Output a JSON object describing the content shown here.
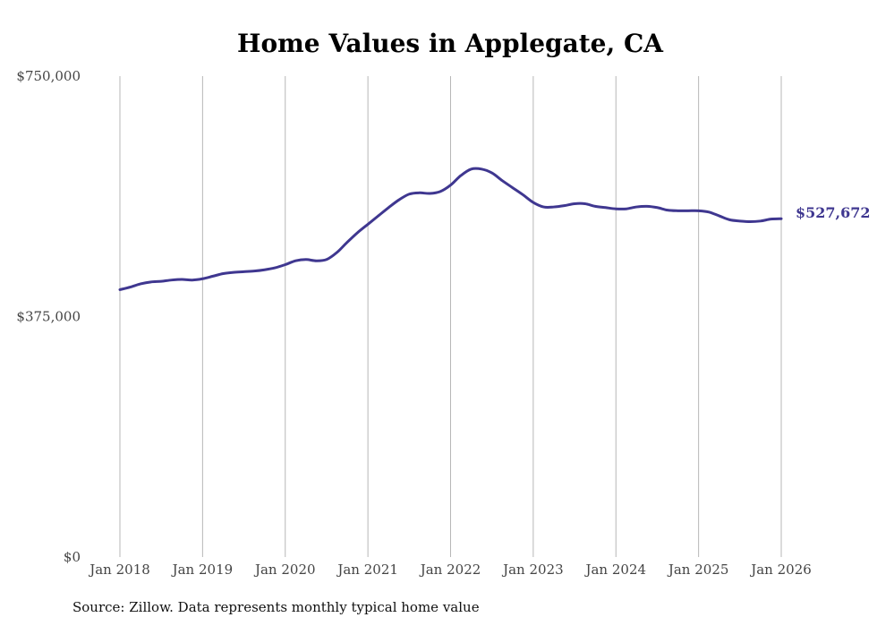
{
  "chart_data": {
    "type": "line",
    "title": "Home Values in Applegate, CA",
    "xlabel": "",
    "ylabel": "",
    "x_tick_labels": [
      "Jan 2018",
      "Jan 2019",
      "Jan 2020",
      "Jan 2021",
      "Jan 2022",
      "Jan 2023",
      "Jan 2024",
      "Jan 2025",
      "Jan 2026"
    ],
    "x_tick_values": [
      2018,
      2019,
      2020,
      2021,
      2022,
      2023,
      2024,
      2025,
      2026
    ],
    "xlim": [
      2018,
      2026
    ],
    "y_tick_labels": [
      "$0",
      "$375,000",
      "$750,000"
    ],
    "y_tick_values": [
      0,
      375000,
      750000
    ],
    "ylim": [
      0,
      750000
    ],
    "grid": "vertical",
    "series": [
      {
        "name": "Typical home value",
        "color": "#3f3790",
        "end_label": "$527,672",
        "x": [
          2018.0,
          2018.125,
          2018.25,
          2018.375,
          2018.5,
          2018.625,
          2018.75,
          2018.875,
          2019.0,
          2019.125,
          2019.25,
          2019.375,
          2019.5,
          2019.625,
          2019.75,
          2019.875,
          2020.0,
          2020.125,
          2020.25,
          2020.375,
          2020.5,
          2020.625,
          2020.75,
          2020.875,
          2021.0,
          2021.125,
          2021.25,
          2021.375,
          2021.5,
          2021.625,
          2021.75,
          2021.875,
          2022.0,
          2022.125,
          2022.25,
          2022.375,
          2022.5,
          2022.625,
          2022.75,
          2022.875,
          2023.0,
          2023.125,
          2023.25,
          2023.375,
          2023.5,
          2023.625,
          2023.75,
          2023.875,
          2024.0,
          2024.125,
          2024.25,
          2024.375,
          2024.5,
          2024.625,
          2024.75,
          2024.875,
          2025.0,
          2025.125,
          2025.25,
          2025.375,
          2025.5,
          2025.625,
          2025.75,
          2025.875,
          2026.0
        ],
        "values": [
          417000,
          421000,
          426000,
          429000,
          430000,
          432000,
          433000,
          432000,
          434000,
          438000,
          442000,
          444000,
          445000,
          446000,
          448000,
          451000,
          456000,
          462000,
          464000,
          462000,
          464000,
          475000,
          491000,
          506000,
          519000,
          532000,
          545000,
          557000,
          566000,
          568000,
          567000,
          570000,
          580000,
          595000,
          605000,
          605000,
          599000,
          587000,
          576000,
          565000,
          553000,
          546000,
          546000,
          548000,
          551000,
          551000,
          547000,
          545000,
          543000,
          543000,
          546000,
          547000,
          545000,
          541000,
          540000,
          540000,
          540000,
          538000,
          532000,
          526000,
          524000,
          523000,
          524000,
          527000,
          527672
        ]
      }
    ],
    "source": "Source: Zillow. Data represents monthly typical home value"
  }
}
